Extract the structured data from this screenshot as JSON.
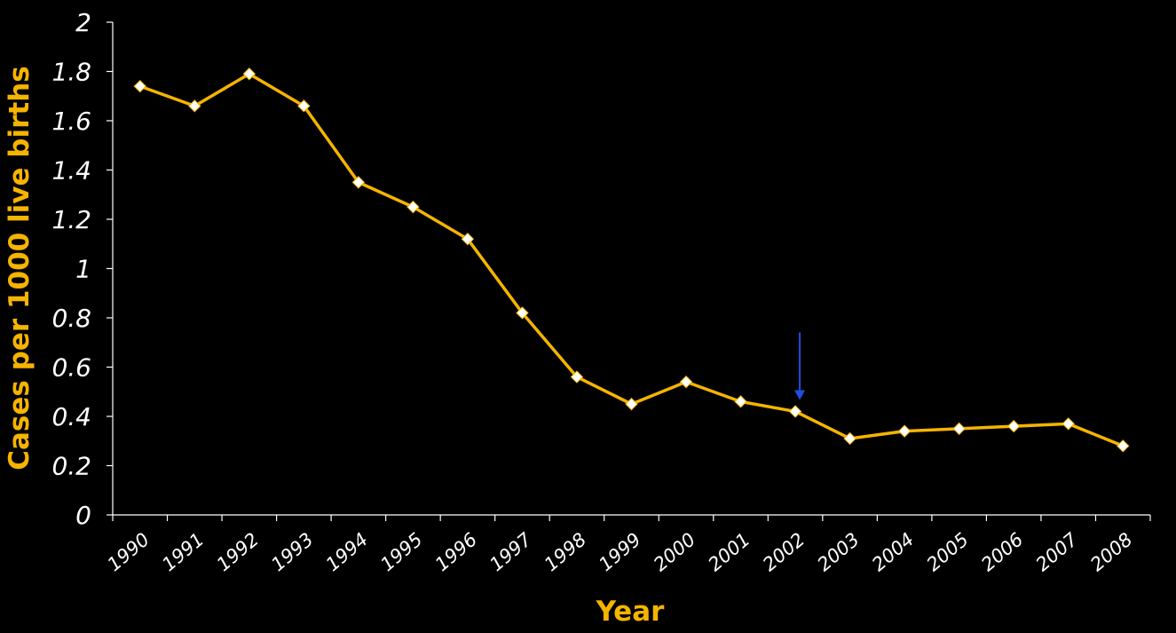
{
  "colors": {
    "background": "#000000",
    "axis": "#ffffff",
    "line": "#f5b400",
    "marker_fill": "#ffffff",
    "annotation_arrow": "#1f4fe0",
    "axis_title": "#f5b400"
  },
  "chart_data": {
    "type": "line",
    "xlabel": "Year",
    "ylabel": "Cases per 1000 live births",
    "ylim": [
      0,
      2
    ],
    "yticks": [
      "0",
      "0.2",
      "0.4",
      "0.6",
      "0.8",
      "1",
      "1.2",
      "1.4",
      "1.6",
      "1.8",
      "2"
    ],
    "grid": false,
    "marker": "diamond",
    "categories": [
      "1990",
      "1991",
      "1992",
      "1993",
      "1994",
      "1995",
      "1996",
      "1997",
      "1998",
      "1999",
      "2000",
      "2001",
      "2002",
      "2003",
      "2004",
      "2005",
      "2006",
      "2007",
      "2008"
    ],
    "series": [
      {
        "values": [
          1.74,
          1.66,
          1.79,
          1.66,
          1.35,
          1.25,
          1.12,
          0.82,
          0.56,
          0.45,
          0.54,
          0.46,
          0.42,
          0.31,
          0.34,
          0.35,
          0.36,
          0.37,
          0.28
        ]
      }
    ],
    "annotations": [
      {
        "type": "arrow",
        "category": "2002",
        "points_to_value": 0.42
      }
    ]
  }
}
